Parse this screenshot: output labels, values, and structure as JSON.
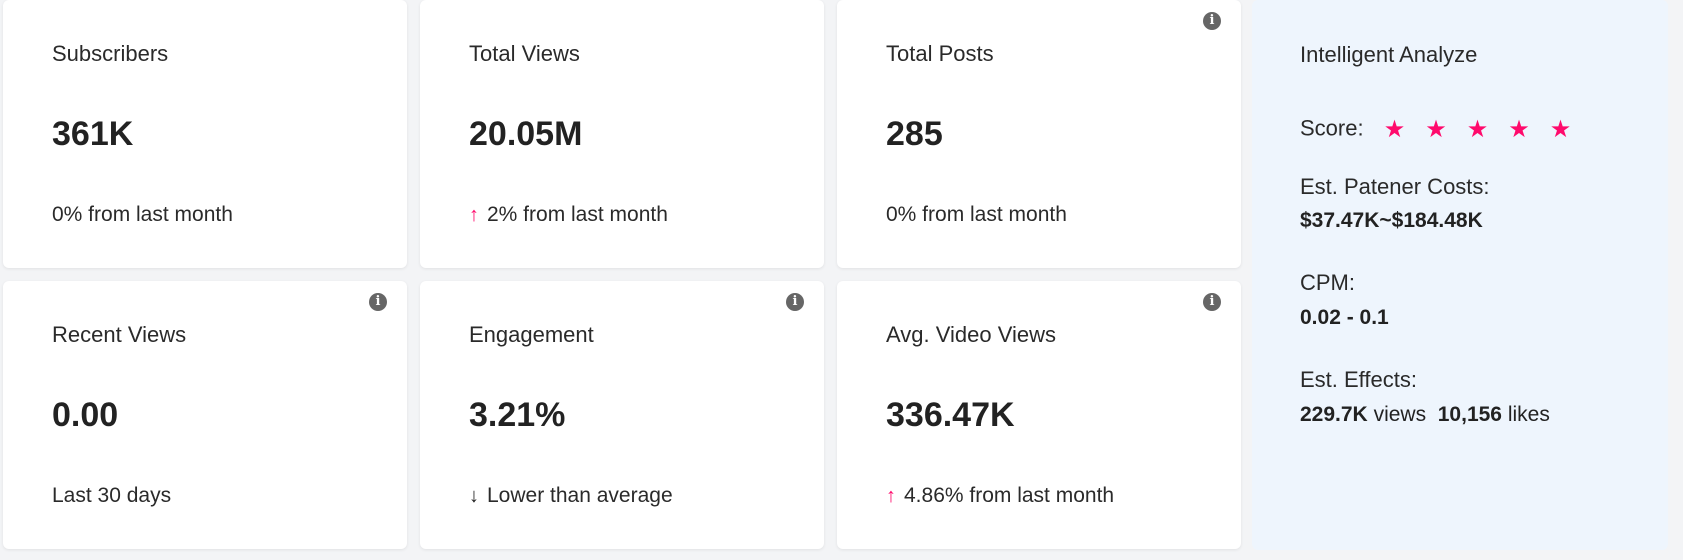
{
  "cards": [
    {
      "title": "Subscribers",
      "value": "361K",
      "sub": "0% from last month",
      "trend": "none",
      "info": false
    },
    {
      "title": "Total Views",
      "value": "20.05M",
      "sub": "2% from last month",
      "trend": "up",
      "info": false
    },
    {
      "title": "Total Posts",
      "value": "285",
      "sub": "0% from last month",
      "trend": "none",
      "info": true
    },
    {
      "title": "Recent Views",
      "value": "0.00",
      "sub": "Last 30 days",
      "trend": "none",
      "info": true
    },
    {
      "title": "Engagement",
      "value": "3.21%",
      "sub": "Lower than average",
      "trend": "down",
      "info": true
    },
    {
      "title": "Avg. Video Views",
      "value": "336.47K",
      "sub": "4.86% from last month",
      "trend": "up",
      "info": true
    }
  ],
  "panel": {
    "title": "Intelligent Analyze",
    "score_label": "Score:",
    "score": 5,
    "score_max": 5,
    "costs_label": "Est. Patener Costs:",
    "costs_value": "$37.47K~$184.48K",
    "cpm_label": "CPM:",
    "cpm_value": "0.02 - 0.1",
    "effects_label": "Est. Effects:",
    "effects_views": "229.7K",
    "effects_views_unit": "views",
    "effects_likes": "10,156",
    "effects_likes_unit": "likes"
  },
  "icons": {
    "info": "i",
    "up": "🡑",
    "down": "🡓",
    "star": "★"
  },
  "colors": {
    "accent": "#ff0a6c",
    "panel_bg": "#eef5fd"
  }
}
